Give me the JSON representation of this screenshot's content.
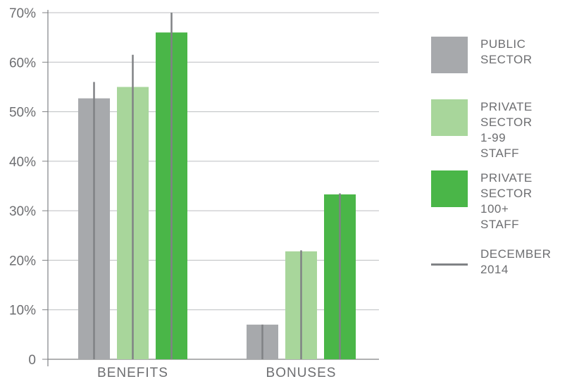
{
  "chart_data": {
    "type": "bar",
    "categories": [
      "BENEFITS",
      "BONUSES"
    ],
    "ylim": [
      0,
      70
    ],
    "yticks": [
      {
        "value": 0,
        "label": "0"
      },
      {
        "value": 10,
        "label": "10%"
      },
      {
        "value": 20,
        "label": "20%"
      },
      {
        "value": 30,
        "label": "30%"
      },
      {
        "value": 40,
        "label": "40%"
      },
      {
        "value": 50,
        "label": "50%"
      },
      {
        "value": 60,
        "label": "60%"
      },
      {
        "value": 70,
        "label": "70%"
      }
    ],
    "grid": true,
    "legend_position": "right",
    "series": [
      {
        "name": "PUBLIC SECTOR",
        "color": "#a7a9ac",
        "values": [
          52.7,
          7.0
        ]
      },
      {
        "name": "PRIVATE SECTOR 1-99 STAFF",
        "color": "#a8d69b",
        "values": [
          55.0,
          21.8
        ]
      },
      {
        "name": "PRIVATE SECTOR 100+ STAFF",
        "color": "#4ab648",
        "values": [
          66.0,
          33.3
        ]
      }
    ],
    "reference": {
      "name": "DECEMBER 2014",
      "color": "#808285",
      "values": [
        [
          56.0,
          7.0
        ],
        [
          61.5,
          22.0
        ],
        [
          70.0,
          33.5
        ]
      ]
    }
  },
  "legend": {
    "items": [
      {
        "label": "PUBLIC\nSECTOR",
        "kind": "swatch",
        "color": "#a7a9ac"
      },
      {
        "label": "PRIVATE\nSECTOR\n1-99 STAFF",
        "kind": "swatch",
        "color": "#a8d69b"
      },
      {
        "label": "PRIVATE\nSECTOR\n100+ STAFF",
        "kind": "swatch",
        "color": "#4ab648"
      },
      {
        "label": "DECEMBER\n2014",
        "kind": "line",
        "color": "#808285"
      }
    ]
  }
}
